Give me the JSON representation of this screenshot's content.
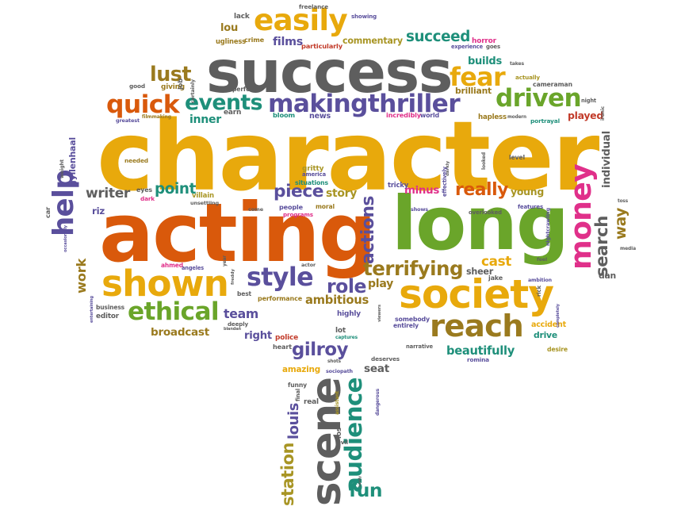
{
  "palette": {
    "gold": "#e8a90c",
    "gray": "#5e5e5e",
    "orange": "#d9590b",
    "green": "#6aa52a",
    "purple": "#5a4f9c",
    "teal": "#1e8f7a",
    "magenta": "#e0308a",
    "brown": "#9a7a1e",
    "olive": "#a89524",
    "red": "#c23b2a"
  },
  "words": [
    {
      "text": "character",
      "color": "gold"
    },
    {
      "text": "acting",
      "color": "orange"
    },
    {
      "text": "long",
      "color": "green"
    },
    {
      "text": "success",
      "color": "gray"
    },
    {
      "text": "society",
      "color": "gold"
    },
    {
      "text": "scene",
      "color": "gray"
    },
    {
      "text": "shown",
      "color": "gold"
    },
    {
      "text": "reach",
      "color": "brown"
    },
    {
      "text": "easily",
      "color": "gold"
    },
    {
      "text": "driven",
      "color": "green"
    },
    {
      "text": "money",
      "color": "magenta"
    },
    {
      "text": "audience",
      "color": "teal"
    },
    {
      "text": "ethical",
      "color": "green"
    },
    {
      "text": "style",
      "color": "purple"
    },
    {
      "text": "makingthriller",
      "color": "purple"
    },
    {
      "text": "events",
      "color": "teal"
    },
    {
      "text": "quick",
      "color": "orange"
    },
    {
      "text": "fear",
      "color": "gold"
    },
    {
      "text": "lust",
      "color": "brown"
    },
    {
      "text": "help",
      "color": "purple"
    },
    {
      "text": "search",
      "color": "gray"
    },
    {
      "text": "really",
      "color": "orange"
    },
    {
      "text": "terrifying",
      "color": "brown"
    },
    {
      "text": "actions",
      "color": "purple"
    },
    {
      "text": "gilroy",
      "color": "purple"
    },
    {
      "text": "piece",
      "color": "purple"
    },
    {
      "text": "story",
      "color": "olive"
    },
    {
      "text": "role",
      "color": "purple"
    },
    {
      "text": "play",
      "color": "brown"
    },
    {
      "text": "beautifully",
      "color": "teal"
    },
    {
      "text": "ambitious",
      "color": "brown"
    },
    {
      "text": "succeed",
      "color": "teal"
    },
    {
      "text": "films",
      "color": "purple"
    },
    {
      "text": "commentary",
      "color": "olive"
    },
    {
      "text": "point",
      "color": "teal"
    },
    {
      "text": "writer",
      "color": "gray"
    },
    {
      "text": "station",
      "color": "olive"
    },
    {
      "text": "fun",
      "color": "teal"
    },
    {
      "text": "louis",
      "color": "purple"
    },
    {
      "text": "broadcast",
      "color": "brown"
    },
    {
      "text": "team",
      "color": "purple"
    },
    {
      "text": "right",
      "color": "purple"
    },
    {
      "text": "work",
      "color": "brown"
    },
    {
      "text": "way",
      "color": "brown"
    },
    {
      "text": "young",
      "color": "olive"
    },
    {
      "text": "cast",
      "color": "gold"
    },
    {
      "text": "builds",
      "color": "teal"
    },
    {
      "text": "brilliant",
      "color": "brown"
    },
    {
      "text": "sheer",
      "color": "gray"
    },
    {
      "text": "seat",
      "color": "gray"
    },
    {
      "text": "amazing",
      "color": "gold"
    },
    {
      "text": "gyllenhaal",
      "color": "purple"
    },
    {
      "text": "riz",
      "color": "purple"
    },
    {
      "text": "lou",
      "color": "brown"
    },
    {
      "text": "dan",
      "color": "gray"
    },
    {
      "text": "minus",
      "color": "magenta"
    },
    {
      "text": "inner",
      "color": "teal"
    },
    {
      "text": "individual",
      "color": "gray"
    },
    {
      "text": "played",
      "color": "red"
    },
    {
      "text": "freelance",
      "color": "gray"
    },
    {
      "text": "lack",
      "color": "gray"
    },
    {
      "text": "showing",
      "color": "purple"
    },
    {
      "text": "ugliness",
      "color": "brown"
    },
    {
      "text": "crime",
      "color": "brown"
    },
    {
      "text": "particularly",
      "color": "red"
    },
    {
      "text": "horror",
      "color": "magenta"
    },
    {
      "text": "experience",
      "color": "purple"
    },
    {
      "text": "goes",
      "color": "gray"
    },
    {
      "text": "good",
      "color": "gray"
    },
    {
      "text": "giving",
      "color": "brown"
    },
    {
      "text": "certainly",
      "color": "gray"
    },
    {
      "text": "perfect",
      "color": "gray"
    },
    {
      "text": "takes",
      "color": "gray"
    },
    {
      "text": "actually",
      "color": "olive"
    },
    {
      "text": "cameraman",
      "color": "gray"
    },
    {
      "text": "night",
      "color": "gray"
    },
    {
      "text": "ironic",
      "color": "gray"
    },
    {
      "text": "greatest",
      "color": "purple"
    },
    {
      "text": "filmmaking",
      "color": "brown"
    },
    {
      "text": "earn",
      "color": "gray"
    },
    {
      "text": "bloom",
      "color": "teal"
    },
    {
      "text": "news",
      "color": "purple"
    },
    {
      "text": "incredibly",
      "color": "magenta"
    },
    {
      "text": "world",
      "color": "purple"
    },
    {
      "text": "hapless",
      "color": "brown"
    },
    {
      "text": "modern",
      "color": "gray"
    },
    {
      "text": "portrayal",
      "color": "teal"
    },
    {
      "text": "level",
      "color": "gray"
    },
    {
      "text": "looked",
      "color": "gray"
    },
    {
      "text": "darkly",
      "color": "gray"
    },
    {
      "text": "effectively",
      "color": "purple"
    },
    {
      "text": "gritty",
      "color": "olive"
    },
    {
      "text": "america",
      "color": "purple"
    },
    {
      "text": "situations",
      "color": "teal"
    },
    {
      "text": "tricky",
      "color": "purple"
    },
    {
      "text": "needed",
      "color": "brown"
    },
    {
      "text": "weight",
      "color": "gray"
    },
    {
      "text": "eyes",
      "color": "gray"
    },
    {
      "text": "dark",
      "color": "magenta"
    },
    {
      "text": "villain",
      "color": "olive"
    },
    {
      "text": "unsettling",
      "color": "gray"
    },
    {
      "text": "people",
      "color": "purple"
    },
    {
      "text": "moral",
      "color": "brown"
    },
    {
      "text": "programs",
      "color": "magenta"
    },
    {
      "text": "come",
      "color": "gray"
    },
    {
      "text": "shows",
      "color": "purple"
    },
    {
      "text": "features",
      "color": "purple"
    },
    {
      "text": "overlooked",
      "color": "gray"
    },
    {
      "text": "toss",
      "color": "gray"
    },
    {
      "text": "car",
      "color": "gray"
    },
    {
      "text": "occasionally",
      "color": "purple"
    },
    {
      "text": "nightcrawling",
      "color": "purple"
    },
    {
      "text": "media",
      "color": "gray"
    },
    {
      "text": "feel",
      "color": "gray"
    },
    {
      "text": "ahmed",
      "color": "magenta"
    },
    {
      "text": "angeles",
      "color": "purple"
    },
    {
      "text": "freddy",
      "color": "gray"
    },
    {
      "text": "year",
      "color": "gray"
    },
    {
      "text": "actor",
      "color": "gray"
    },
    {
      "text": "jake",
      "color": "gray"
    },
    {
      "text": "ambition",
      "color": "purple"
    },
    {
      "text": "rick",
      "color": "gray"
    },
    {
      "text": "entertaining",
      "color": "purple"
    },
    {
      "text": "best",
      "color": "gray"
    },
    {
      "text": "performance",
      "color": "brown"
    },
    {
      "text": "business",
      "color": "gray"
    },
    {
      "text": "editor",
      "color": "gray"
    },
    {
      "text": "deeply",
      "color": "gray"
    },
    {
      "text": "blandan",
      "color": "gray"
    },
    {
      "text": "highly",
      "color": "purple"
    },
    {
      "text": "viewers",
      "color": "gray"
    },
    {
      "text": "somebody",
      "color": "purple"
    },
    {
      "text": "entirely",
      "color": "purple"
    },
    {
      "text": "accident",
      "color": "gold"
    },
    {
      "text": "drive",
      "color": "teal"
    },
    {
      "text": "completely",
      "color": "purple"
    },
    {
      "text": "police",
      "color": "red"
    },
    {
      "text": "lot",
      "color": "gray"
    },
    {
      "text": "captures",
      "color": "teal"
    },
    {
      "text": "heart",
      "color": "gray"
    },
    {
      "text": "narrative",
      "color": "gray"
    },
    {
      "text": "desire",
      "color": "olive"
    },
    {
      "text": "romina",
      "color": "purple"
    },
    {
      "text": "deserves",
      "color": "gray"
    },
    {
      "text": "shots",
      "color": "gray"
    },
    {
      "text": "sociopath",
      "color": "purple"
    },
    {
      "text": "funny",
      "color": "gray"
    },
    {
      "text": "final",
      "color": "gray"
    },
    {
      "text": "real",
      "color": "gray"
    },
    {
      "text": "assistant",
      "color": "olive"
    },
    {
      "text": "dangerous",
      "color": "purple"
    },
    {
      "text": "los",
      "color": "gray"
    },
    {
      "text": "evil",
      "color": "gray"
    },
    {
      "text": "job",
      "color": "gray"
    },
    {
      "text": "surely",
      "color": "gray"
    }
  ]
}
